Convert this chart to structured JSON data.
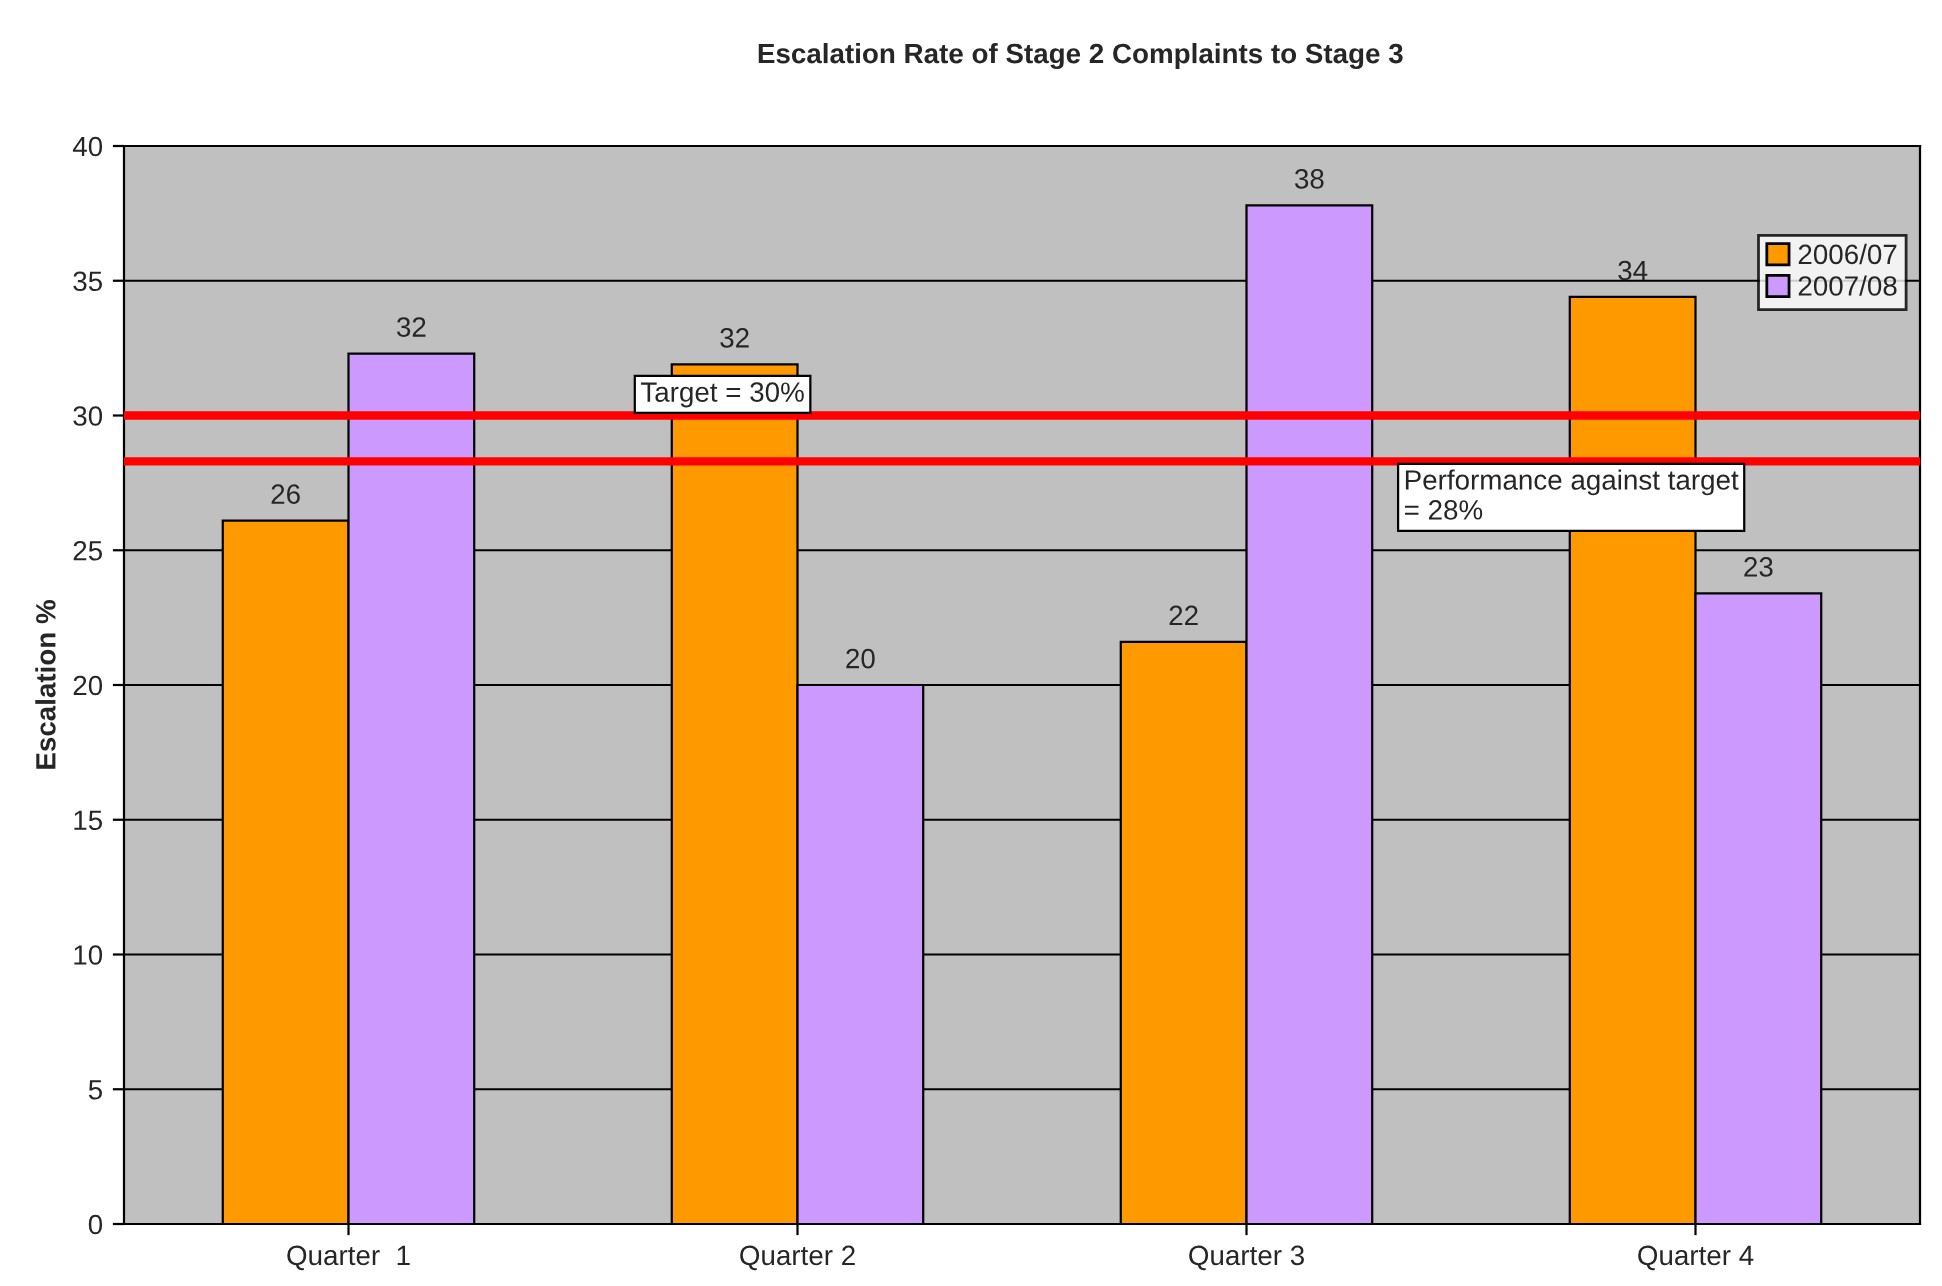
{
  "chart_data": {
    "type": "bar",
    "title": "Escalation Rate of Stage 2 Complaints to Stage 3",
    "ylabel": "Escalation %",
    "categories": [
      "Quarter  1",
      "Quarter 2",
      "Quarter 3",
      "Quarter 4"
    ],
    "series": [
      {
        "name": "2006/07",
        "color": "#ff9900",
        "values": [
          26.1,
          31.9,
          21.6,
          34.4
        ],
        "value_labels": [
          "26",
          "32",
          "22",
          "34"
        ]
      },
      {
        "name": "2007/08",
        "color": "#cc99ff",
        "values": [
          32.3,
          20.0,
          37.8,
          23.4
        ],
        "value_labels": [
          "32",
          "20",
          "38",
          "23"
        ]
      }
    ],
    "ylim": [
      0,
      40
    ],
    "yticks": [
      0,
      5,
      10,
      15,
      20,
      25,
      30,
      35,
      40
    ],
    "grid": "y",
    "legend": "top right",
    "ref_lines": [
      {
        "axis": "y",
        "value": 30,
        "label": "Target = 30%",
        "color": "#ff0000"
      },
      {
        "axis": "y",
        "value": 28.3,
        "label": "Performance against target\n= 28%",
        "color": "#ff0000"
      }
    ]
  }
}
